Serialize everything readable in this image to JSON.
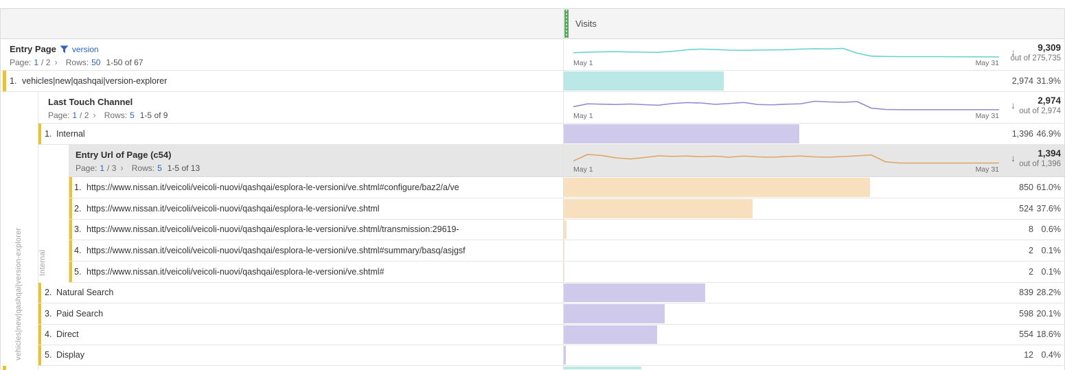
{
  "visits_header": "Visits",
  "icons": {
    "chevron_right": "›",
    "arrow_down": "↓"
  },
  "colors": {
    "accent_green": "#56a85c",
    "link_blue": "#2b66bf",
    "yellow_marker": "#edc32b",
    "teal_bar": "#b9e8e6",
    "purple_bar": "#cfcaec",
    "orange_bar": "#f8dfbd"
  },
  "l1": {
    "dimension": "Entry Page",
    "filter_label": "version",
    "page_label": "Page:",
    "page": "1",
    "page_of": "/ 2",
    "rows_label": "Rows:",
    "rows": "50",
    "range": "1-50 of 67",
    "sparkline": {
      "date_start": "May 1",
      "date_end": "May 31",
      "value": "9,309",
      "out_of": "out of 275,735",
      "color": "#62d2cd",
      "points": [
        45,
        48,
        50,
        51,
        49,
        48,
        47,
        53,
        62,
        66,
        63,
        60,
        59,
        60,
        61,
        62,
        66,
        68,
        67,
        70,
        42,
        25,
        23,
        22,
        22,
        22,
        22,
        21,
        21,
        21,
        20
      ]
    },
    "rows_data": [
      {
        "index": "1.",
        "label": "vehicles|new|qashqai|version-explorer",
        "value": "2,974",
        "percent": "31.9%",
        "bar_pct": 31.9,
        "bar_color": "#b9e8e6"
      }
    ]
  },
  "l2": {
    "dimension": "Last Touch Channel",
    "page_label": "Page:",
    "page": "1",
    "page_of": "/ 2",
    "rows_label": "Rows:",
    "rows": "5",
    "range": "1-5 of 9",
    "sparkline": {
      "date_start": "May 1",
      "date_end": "May 31",
      "value": "2,974",
      "out_of": "out of 2,974",
      "color": "#9089ce",
      "points": [
        38,
        55,
        53,
        51,
        54,
        50,
        47,
        57,
        62,
        60,
        52,
        57,
        63,
        51,
        49,
        53,
        55,
        70,
        66,
        64,
        68,
        30,
        22,
        21,
        21,
        21,
        21,
        21,
        21,
        21,
        21
      ]
    },
    "rows_data": [
      {
        "index": "1.",
        "label": "Internal",
        "value": "1,396",
        "percent": "46.9%",
        "bar_pct": 46.9,
        "bar_color": "#cfcaec"
      },
      {
        "index": "2.",
        "label": "Natural Search",
        "value": "839",
        "percent": "28.2%",
        "bar_pct": 28.2,
        "bar_color": "#cfcaec"
      },
      {
        "index": "3.",
        "label": "Paid Search",
        "value": "598",
        "percent": "20.1%",
        "bar_pct": 20.1,
        "bar_color": "#cfcaec"
      },
      {
        "index": "4.",
        "label": "Direct",
        "value": "554",
        "percent": "18.6%",
        "bar_pct": 18.6,
        "bar_color": "#cfcaec"
      },
      {
        "index": "5.",
        "label": "Display",
        "value": "12",
        "percent": "0.4%",
        "bar_pct": 0.4,
        "bar_color": "#cfcaec"
      }
    ]
  },
  "l3": {
    "dimension": "Entry Url of Page (c54)",
    "page_label": "Page:",
    "page": "1",
    "page_of": "/ 3",
    "rows_label": "Rows:",
    "rows": "5",
    "range": "1-5 of 13",
    "sparkline": {
      "date_start": "May 1",
      "date_end": "May 31",
      "value": "1,394",
      "out_of": "out of 1,396",
      "color": "#dda55f",
      "points": [
        30,
        68,
        62,
        48,
        42,
        50,
        60,
        57,
        59,
        55,
        58,
        52,
        59,
        54,
        52,
        56,
        59,
        54,
        52,
        56,
        60,
        65,
        25,
        18,
        18,
        18,
        18,
        18,
        18,
        18,
        18
      ]
    },
    "rows_data": [
      {
        "index": "1.",
        "label": "https://www.nissan.it/veicoli/veicoli-nuovi/qashqai/esplora-le-versioni/ve.shtml#configure/baz2/a/ve",
        "value": "850",
        "percent": "61.0%",
        "bar_pct": 61.0,
        "bar_color": "#f8dfbd"
      },
      {
        "index": "2.",
        "label": "https://www.nissan.it/veicoli/veicoli-nuovi/qashqai/esplora-le-versioni/ve.shtml",
        "value": "524",
        "percent": "37.6%",
        "bar_pct": 37.6,
        "bar_color": "#f8dfbd"
      },
      {
        "index": "3.",
        "label": "https://www.nissan.it/veicoli/veicoli-nuovi/qashqai/esplora-le-versioni/ve.shtml/transmission:29619-",
        "value": "8",
        "percent": "0.6%",
        "bar_pct": 0.6,
        "bar_color": "#f8dfbd"
      },
      {
        "index": "4.",
        "label": "https://www.nissan.it/veicoli/veicoli-nuovi/qashqai/esplora-le-versioni/ve.shtml#summary/basq/asjgsf",
        "value": "2",
        "percent": "0.1%",
        "bar_pct": 0.15,
        "bar_color": "#f8dfbd"
      },
      {
        "index": "5.",
        "label": "https://www.nissan.it/veicoli/veicoli-nuovi/qashqai/esplora-le-versioni/ve.shtml#",
        "value": "2",
        "percent": "0.1%",
        "bar_pct": 0.15,
        "bar_color": "#f8dfbd"
      }
    ]
  },
  "rails": {
    "level1": "vehicles|new|qashqai|version-explorer",
    "level2": "Internal"
  },
  "partial_row": {
    "bar_pct": 15.5,
    "bar_color": "#b9e8e6"
  }
}
